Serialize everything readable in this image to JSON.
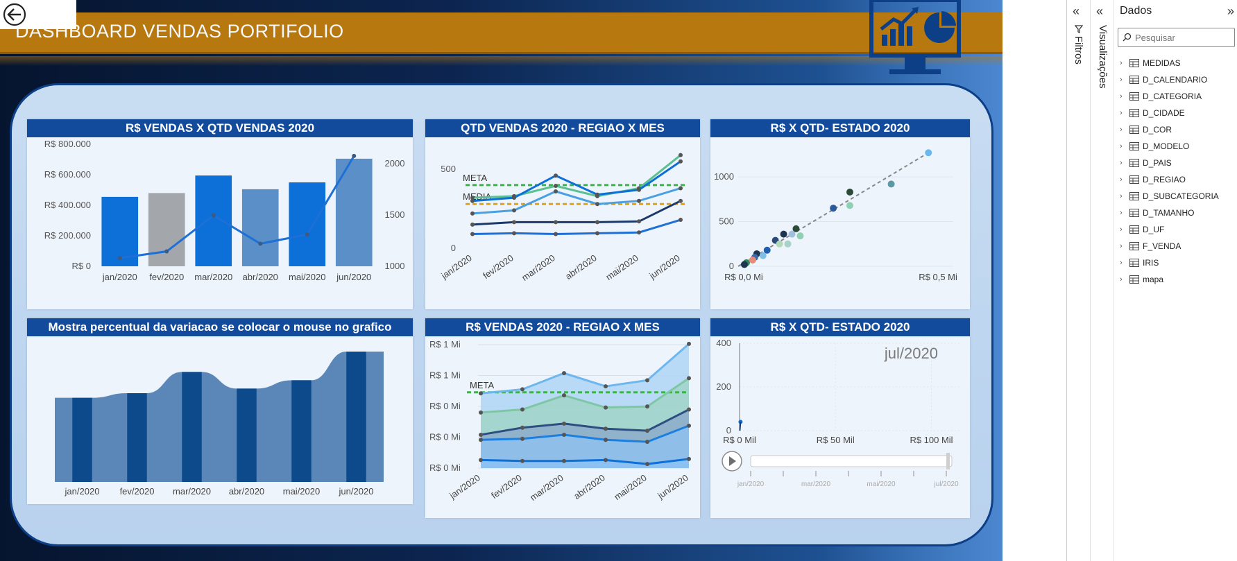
{
  "dashboard": {
    "title": "DASHBOARD VENDAS PORTIFOLIO",
    "back_icon": "back-arrow-icon",
    "monitor_icon": "chart-monitor-icon",
    "colors": {
      "banner": "#b6780f",
      "header": "#124b9c",
      "panel": "#c5daf1",
      "accent": "#0d6fd8"
    }
  },
  "cards": {
    "c1": {
      "title": "R$ VENDAS X QTD VENDAS 2020"
    },
    "c2": {
      "title": "QTD VENDAS 2020 - REGIAO X MES"
    },
    "c3": {
      "title": "R$ X QTD- ESTADO 2020"
    },
    "c4": {
      "title": "Mostra percentual da variacao se colocar o mouse no grafico"
    },
    "c5": {
      "title": "R$ VENDAS 2020 - REGIAO X MES"
    },
    "c6": {
      "title": "R$ X QTD- ESTADO 2020"
    }
  },
  "chart_data": [
    {
      "id": "c1",
      "type": "bar",
      "categories": [
        "jan/2020",
        "fev/2020",
        "mar/2020",
        "abr/2020",
        "mai/2020",
        "jun/2020"
      ],
      "series": [
        {
          "values": [
            455000,
            480000,
            595000,
            505000,
            550000,
            705000
          ],
          "colors": [
            "#0d6fd8",
            "#a3a6ab",
            "#0d6fd8",
            "#5b8fc8",
            "#0d6fd8",
            "#5b8fc8"
          ]
        },
        {
          "type": "line",
          "axis": "right",
          "values": [
            1080,
            1145,
            1495,
            1220,
            1310,
            2075
          ]
        }
      ],
      "y_ticks_left": [
        "R$ 800.000",
        "R$ 600.000",
        "R$ 400.000",
        "R$ 200.000",
        "R$ 0"
      ],
      "y_ticks_right": [
        "2000",
        "1500",
        "1000"
      ],
      "ylim_left": [
        0,
        800000
      ],
      "ylim_right": [
        1000,
        2000
      ]
    },
    {
      "id": "c2",
      "type": "line",
      "categories": [
        "jan/2020",
        "fev/2020",
        "mar/2020",
        "abr/2020",
        "mai/2020",
        "jun/2020"
      ],
      "series": [
        {
          "color": "#5bbf8f",
          "values": [
            320,
            330,
            395,
            330,
            380,
            590
          ]
        },
        {
          "color": "#0d6fd8",
          "values": [
            300,
            320,
            460,
            340,
            370,
            550
          ]
        },
        {
          "color": "#4aa0e0",
          "values": [
            220,
            240,
            360,
            280,
            300,
            380
          ]
        },
        {
          "color": "#1b3a6b",
          "values": [
            150,
            165,
            165,
            165,
            170,
            300
          ]
        },
        {
          "color": "#1e6fd6",
          "values": [
            90,
            95,
            90,
            95,
            100,
            180
          ]
        }
      ],
      "reference_lines": [
        {
          "label": "META",
          "value": 400,
          "color": "#3bb34a"
        },
        {
          "label": "MEDIA",
          "value": 280,
          "color": "#e0a21a"
        }
      ],
      "y_ticks": [
        "500",
        "0"
      ],
      "ylim": [
        0,
        650
      ]
    },
    {
      "id": "c3",
      "type": "scatter",
      "points": [
        {
          "x": 0.46,
          "y": 1270,
          "color": "#6db7ee"
        },
        {
          "x": 0.37,
          "y": 920,
          "color": "#5b9aa5"
        },
        {
          "x": 0.27,
          "y": 830,
          "color": "#2c4a38"
        },
        {
          "x": 0.23,
          "y": 650,
          "color": "#2a5a9c"
        },
        {
          "x": 0.27,
          "y": 680,
          "color": "#8fd0b5"
        },
        {
          "x": 0.14,
          "y": 420,
          "color": "#2c4a38"
        },
        {
          "x": 0.13,
          "y": 360,
          "color": "#9fc0e0"
        },
        {
          "x": 0.15,
          "y": 340,
          "color": "#8fd0b5"
        },
        {
          "x": 0.11,
          "y": 360,
          "color": "#1c3550"
        },
        {
          "x": 0.09,
          "y": 290,
          "color": "#2a4a7a"
        },
        {
          "x": 0.1,
          "y": 250,
          "color": "#b5d9b8"
        },
        {
          "x": 0.12,
          "y": 250,
          "color": "#a6d3c8"
        },
        {
          "x": 0.07,
          "y": 180,
          "color": "#1f5fb0"
        },
        {
          "x": 0.045,
          "y": 140,
          "color": "#1c3550"
        },
        {
          "x": 0.04,
          "y": 100,
          "color": "#3a6ab0"
        },
        {
          "x": 0.02,
          "y": 40,
          "color": "#2f8a5a"
        },
        {
          "x": 0.015,
          "y": 20,
          "color": "#1c3550"
        },
        {
          "x": 0.035,
          "y": 70,
          "color": "#e88a7a"
        },
        {
          "x": 0.06,
          "y": 120,
          "color": "#7fbfe6"
        }
      ],
      "trendline": {
        "x": [
          0.0,
          0.46
        ],
        "y": [
          0,
          1270
        ]
      },
      "x_ticks": [
        "R$ 0,0 Mi",
        "R$ 0,5 Mi"
      ],
      "y_ticks": [
        "1000",
        "500",
        "0"
      ],
      "xlim": [
        0,
        0.52
      ],
      "ylim": [
        0,
        1350
      ]
    },
    {
      "id": "c4",
      "type": "bar",
      "categories": [
        "jan/2020",
        "fev/2020",
        "mar/2020",
        "abr/2020",
        "mai/2020",
        "jun/2020"
      ],
      "values": [
        455000,
        480000,
        595000,
        505000,
        550000,
        705000
      ]
    },
    {
      "id": "c5",
      "type": "area",
      "categories": [
        "jan/2020",
        "fev/2020",
        "mar/2020",
        "abr/2020",
        "mai/2020",
        "jun/2020"
      ],
      "series": [
        {
          "color": "#6db7ee",
          "values": [
            0.74,
            0.78,
            0.94,
            0.81,
            0.87,
            1.23
          ]
        },
        {
          "color": "#7fc6a4",
          "values": [
            0.55,
            0.58,
            0.72,
            0.6,
            0.61,
            0.89
          ]
        },
        {
          "color": "#2d4e80",
          "values": [
            0.33,
            0.4,
            0.44,
            0.39,
            0.37,
            0.58
          ]
        },
        {
          "color": "#1a7fe0",
          "values": [
            0.28,
            0.29,
            0.33,
            0.28,
            0.26,
            0.42
          ]
        },
        {
          "color": "#0d6fd8",
          "values": [
            0.08,
            0.07,
            0.07,
            0.08,
            0.04,
            0.09
          ]
        }
      ],
      "reference_lines": [
        {
          "label": "META",
          "value": 0.75,
          "color": "#3bb34a"
        }
      ],
      "y_ticks": [
        "R$ 1 Mi",
        "R$ 1 Mi",
        "R$ 0 Mi",
        "R$ 0 Mi",
        "R$ 0 Mi"
      ],
      "ylim": [
        0,
        1.25
      ]
    },
    {
      "id": "c6",
      "type": "scatter",
      "points": [
        {
          "x": 0.5,
          "y": 40,
          "color": "#0d6fd8"
        }
      ],
      "play_label": "jul/2020",
      "x_ticks": [
        "R$ 0 Mil",
        "R$ 50 Mil",
        "R$ 100 Mil"
      ],
      "y_ticks": [
        "400",
        "200",
        "0"
      ],
      "slider_ticks": [
        "jan/2020",
        "mar/2020",
        "mai/2020",
        "jul/2020"
      ],
      "xlim": [
        0,
        115
      ],
      "ylim": [
        0,
        400
      ]
    }
  ],
  "panes": {
    "filters": {
      "label": "Filtros",
      "icon": "filter-icon",
      "collapse_icon": "chevron-double-left-icon"
    },
    "visualizations": {
      "label": "Visualizações",
      "collapse_icon": "chevron-double-left-icon"
    },
    "data": {
      "title": "Dados",
      "collapse_icon": "chevron-double-right-icon",
      "search_placeholder": "Pesquisar",
      "tables": [
        {
          "name": "MEDIDAS",
          "icon": "measure-table-icon"
        },
        {
          "name": "D_CALENDARIO",
          "icon": "calendar-table-icon"
        },
        {
          "name": "D_CATEGORIA",
          "icon": "table-icon"
        },
        {
          "name": "D_CIDADE",
          "icon": "table-icon"
        },
        {
          "name": "D_COR",
          "icon": "table-icon"
        },
        {
          "name": "D_MODELO",
          "icon": "table-icon"
        },
        {
          "name": "D_PAIS",
          "icon": "table-icon"
        },
        {
          "name": "D_REGIAO",
          "icon": "table-icon"
        },
        {
          "name": "D_SUBCATEGORIA",
          "icon": "table-icon"
        },
        {
          "name": "D_TAMANHO",
          "icon": "table-icon"
        },
        {
          "name": "D_UF",
          "icon": "table-icon"
        },
        {
          "name": "F_VENDA",
          "icon": "table-icon"
        },
        {
          "name": "IRIS",
          "icon": "table-icon"
        },
        {
          "name": "mapa",
          "icon": "table-icon"
        }
      ]
    }
  }
}
